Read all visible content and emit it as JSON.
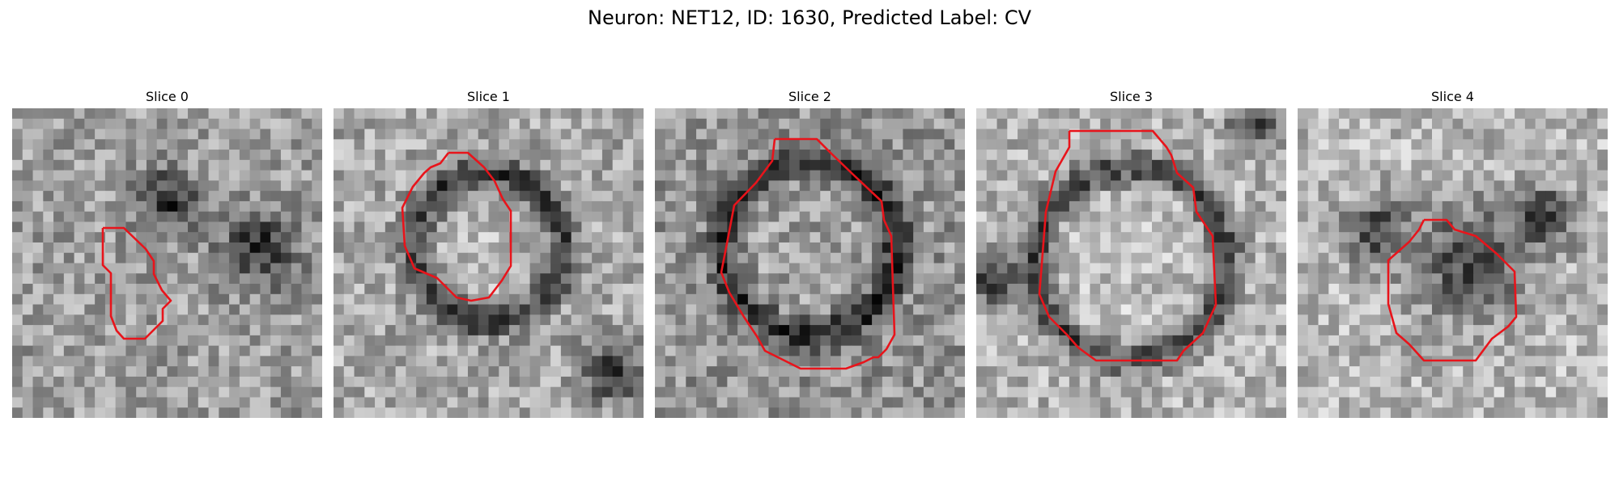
{
  "figure": {
    "title": "Neuron: NET12, ID: 1630, Predicted Label: CV"
  },
  "slices": [
    {
      "title": "Slice 0"
    },
    {
      "title": "Slice 1"
    },
    {
      "title": "Slice 2"
    },
    {
      "title": "Slice 3"
    },
    {
      "title": "Slice 4"
    }
  ],
  "colors": {
    "contour": "#e8141b",
    "background": "#ffffff"
  }
}
